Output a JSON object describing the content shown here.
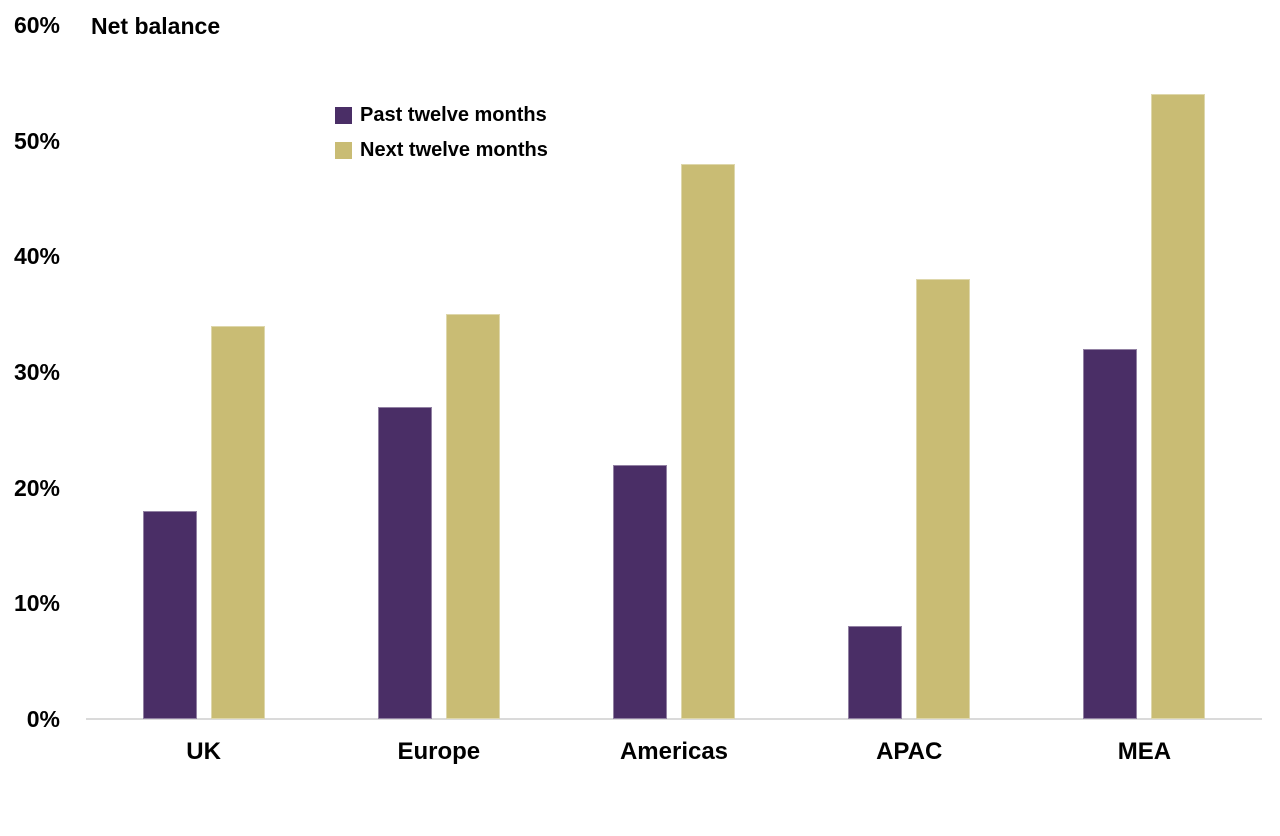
{
  "chart_data": {
    "type": "bar",
    "title": "Net balance",
    "categories": [
      "UK",
      "Europe",
      "Americas",
      "APAC",
      "MEA"
    ],
    "series": [
      {
        "name": "Past twelve months",
        "color": "#4A2E66",
        "values": [
          18,
          27,
          22,
          8,
          32
        ]
      },
      {
        "name": "Next twelve months",
        "color": "#C9BC74",
        "values": [
          34,
          35,
          48,
          38,
          54
        ]
      }
    ],
    "ylabel": "Net balance",
    "y_tick_labels": [
      "0%",
      "10%",
      "20%",
      "30%",
      "40%",
      "50%",
      "60%"
    ],
    "y_tick_values": [
      0,
      10,
      20,
      30,
      40,
      50,
      60
    ],
    "ylim": [
      0,
      60
    ],
    "grid": false,
    "legend_position": "top-left-inside",
    "colors": {
      "past_series": "#4A2E66",
      "next_series": "#C9BC74",
      "axis_line": "#DADADA",
      "text": "#000000",
      "background": "#FFFFFF"
    }
  }
}
